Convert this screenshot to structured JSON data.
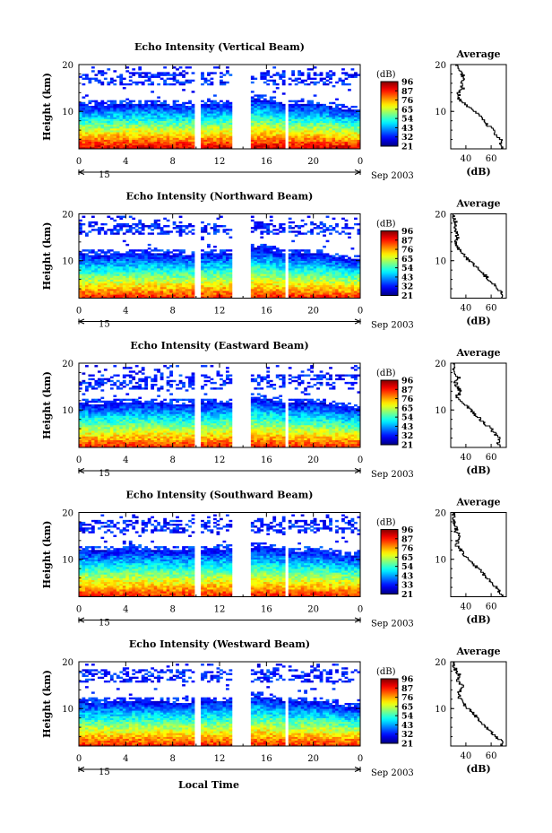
{
  "figure": {
    "x_axis_label": "Local Time",
    "y_axis_label": "Height (km)",
    "date_label": "Sep 2003",
    "day_marker": "15",
    "average_title": "Average",
    "average_xlabel": "(dB)",
    "colorbar_unit": "(dB)"
  },
  "chart_data": [
    {
      "type": "heatmap",
      "title": "Echo Intensity (Vertical Beam)",
      "xlabel": "",
      "ylabel": "Height (km)",
      "xlim": [
        0,
        24
      ],
      "ylim": [
        2,
        20
      ],
      "x_ticks": [
        "0",
        "4",
        "8",
        "12",
        "16",
        "20",
        "0"
      ],
      "y_ticks": [
        "10",
        "20"
      ],
      "colorbar": {
        "unit": "(dB)",
        "ticks": [
          "96",
          "87",
          "76",
          "65",
          "54",
          "43",
          "32",
          "21"
        ]
      },
      "data_gaps_hours": [
        [
          10.0,
          10.3
        ],
        [
          13.2,
          14.6
        ],
        [
          17.6,
          17.9
        ]
      ],
      "tropopause_km": {
        "before_gap": 11.5,
        "after_gap": 12.5,
        "end": 10.5
      },
      "upper_layer_km": [
        15.8,
        18.5
      ],
      "surface_db": 90,
      "average_profile": {
        "title": "Average",
        "xlabel": "(dB)",
        "x_ticks": [
          "40",
          "60"
        ],
        "y_ticks": [
          "10",
          "20"
        ],
        "height_km": [
          2,
          3,
          4,
          5,
          6,
          7,
          8,
          9,
          10,
          11,
          12,
          13,
          14,
          15,
          16,
          17,
          18,
          19,
          20
        ],
        "db": [
          70,
          67,
          68,
          64,
          62,
          58,
          55,
          51,
          47,
          43,
          38,
          34,
          34,
          38,
          36,
          39,
          37,
          34,
          32
        ]
      }
    },
    {
      "type": "heatmap",
      "title": "Echo Intensity (Northward Beam)",
      "xlabel": "",
      "ylabel": "Height (km)",
      "xlim": [
        0,
        24
      ],
      "ylim": [
        2,
        20
      ],
      "x_ticks": [
        "0",
        "4",
        "8",
        "12",
        "16",
        "20",
        "0"
      ],
      "y_ticks": [
        "10",
        "20"
      ],
      "colorbar": {
        "unit": "(dB)",
        "ticks": [
          "96",
          "87",
          "76",
          "65",
          "54",
          "43",
          "32",
          "21"
        ]
      },
      "data_gaps_hours": [
        [
          10.0,
          10.3
        ],
        [
          13.2,
          14.6
        ],
        [
          17.6,
          17.9
        ]
      ],
      "tropopause_km": {
        "before_gap": 11.5,
        "after_gap": 12.5,
        "end": 10.5
      },
      "upper_layer_km": [
        15.8,
        18.0
      ],
      "surface_db": 85,
      "average_profile": {
        "title": "Average",
        "xlabel": "(dB)",
        "x_ticks": [
          "40",
          "60"
        ],
        "y_ticks": [
          "10",
          "20"
        ],
        "height_km": [
          2,
          3,
          4,
          5,
          6,
          7,
          8,
          9,
          10,
          11,
          12,
          13,
          14,
          15,
          16,
          17,
          18,
          19,
          20
        ],
        "db": [
          68,
          69,
          65,
          62,
          58,
          55,
          51,
          47,
          43,
          40,
          36,
          33,
          32,
          34,
          32,
          31,
          32,
          31,
          30
        ]
      }
    },
    {
      "type": "heatmap",
      "title": "Echo Intensity (Eastward Beam)",
      "xlabel": "",
      "ylabel": "Height (km)",
      "xlim": [
        0,
        24
      ],
      "ylim": [
        2,
        20
      ],
      "x_ticks": [
        "0",
        "4",
        "8",
        "12",
        "16",
        "20",
        "0"
      ],
      "y_ticks": [
        "10",
        "20"
      ],
      "colorbar": {
        "unit": "(dB)",
        "ticks": [
          "96",
          "87",
          "76",
          "65",
          "54",
          "43",
          "32",
          "21"
        ]
      },
      "data_gaps_hours": [
        [
          10.0,
          10.3
        ],
        [
          13.2,
          14.6
        ],
        [
          17.6,
          17.9
        ]
      ],
      "tropopause_km": {
        "before_gap": 11.5,
        "after_gap": 12.5,
        "end": 10.5
      },
      "upper_layer_km": [
        14.5,
        17.5
      ],
      "surface_db": 85,
      "average_profile": {
        "title": "Average",
        "xlabel": "(dB)",
        "x_ticks": [
          "40",
          "60"
        ],
        "y_ticks": [
          "10",
          "20"
        ],
        "height_km": [
          2,
          3,
          4,
          5,
          6,
          7,
          8,
          9,
          10,
          11,
          12,
          13,
          14,
          15,
          16,
          17,
          18,
          19,
          20
        ],
        "db": [
          68,
          66,
          67,
          63,
          60,
          56,
          52,
          48,
          44,
          40,
          36,
          33,
          36,
          33,
          32,
          34,
          31,
          30,
          30
        ]
      }
    },
    {
      "type": "heatmap",
      "title": "Echo Intensity (Southward Beam)",
      "xlabel": "",
      "ylabel": "Height (km)",
      "xlim": [
        0,
        24
      ],
      "ylim": [
        2,
        20
      ],
      "x_ticks": [
        "0",
        "4",
        "8",
        "12",
        "16",
        "20",
        "0"
      ],
      "y_ticks": [
        "10",
        "20"
      ],
      "colorbar": {
        "unit": "(dB)",
        "ticks": [
          "96",
          "87",
          "76",
          "65",
          "54",
          "43",
          "33",
          "21"
        ]
      },
      "data_gaps_hours": [
        [
          10.0,
          10.3
        ],
        [
          13.2,
          14.6
        ],
        [
          17.6,
          17.9
        ]
      ],
      "tropopause_km": {
        "before_gap": 12.0,
        "after_gap": 12.5,
        "end": 11.0
      },
      "upper_layer_km": [
        15.8,
        18.5
      ],
      "surface_db": 85,
      "average_profile": {
        "title": "Average",
        "xlabel": "(dB)",
        "x_ticks": [
          "40",
          "60"
        ],
        "y_ticks": [
          "10",
          "20"
        ],
        "height_km": [
          2,
          3,
          4,
          5,
          6,
          7,
          8,
          9,
          10,
          11,
          12,
          13,
          14,
          15,
          16,
          17,
          18,
          19,
          20
        ],
        "db": [
          69,
          67,
          64,
          61,
          57,
          54,
          50,
          46,
          43,
          39,
          36,
          33,
          33,
          36,
          32,
          33,
          31,
          30,
          30
        ]
      }
    },
    {
      "type": "heatmap",
      "title": "Echo Intensity (Westward Beam)",
      "xlabel": "Local Time",
      "ylabel": "Height (km)",
      "xlim": [
        0,
        24
      ],
      "ylim": [
        2,
        20
      ],
      "x_ticks": [
        "0",
        "4",
        "8",
        "12",
        "16",
        "20",
        "0"
      ],
      "y_ticks": [
        "10",
        "20"
      ],
      "colorbar": {
        "unit": "(dB)",
        "ticks": [
          "96",
          "87",
          "76",
          "65",
          "54",
          "43",
          "32",
          "21"
        ]
      },
      "data_gaps_hours": [
        [
          10.0,
          10.3
        ],
        [
          13.2,
          14.6
        ],
        [
          17.6,
          17.9
        ]
      ],
      "tropopause_km": {
        "before_gap": 11.5,
        "after_gap": 12.5,
        "end": 10.5
      },
      "upper_layer_km": [
        15.5,
        18.5
      ],
      "surface_db": 85,
      "average_profile": {
        "title": "Average",
        "xlabel": "(dB)",
        "x_ticks": [
          "40",
          "60"
        ],
        "y_ticks": [
          "10",
          "20"
        ],
        "height_km": [
          2,
          3,
          4,
          5,
          6,
          7,
          8,
          9,
          10,
          11,
          12,
          13,
          14,
          15,
          16,
          17,
          18,
          19,
          20
        ],
        "db": [
          67,
          69,
          64,
          60,
          56,
          53,
          49,
          46,
          42,
          39,
          36,
          34,
          35,
          38,
          33,
          36,
          32,
          31,
          30
        ]
      }
    }
  ]
}
